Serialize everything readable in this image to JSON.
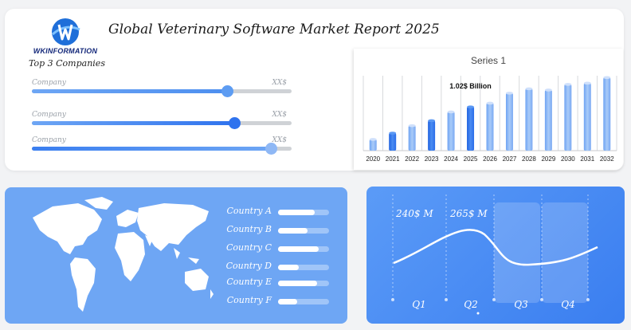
{
  "header": {
    "logo_text": "WKINFORMATION",
    "title": "Global Veterinary Software Market Report 2025"
  },
  "companies": {
    "section_title": "Top 3 Companies",
    "items": [
      {
        "label": "Company",
        "value": "XX$",
        "fraction": 0.75
      },
      {
        "label": "Company",
        "value": "XX$",
        "fraction": 0.78
      },
      {
        "label": "Company",
        "value": "XX$",
        "fraction": 0.92
      }
    ]
  },
  "chart_data": {
    "type": "bar",
    "title": "Series 1",
    "categories": [
      "2020",
      "2021",
      "2022",
      "2023",
      "2024",
      "2025",
      "2026",
      "2027",
      "2028",
      "2029",
      "2030",
      "2031",
      "2032"
    ],
    "series": [
      {
        "values": [
          0.18,
          0.28,
          0.4,
          0.48,
          0.62,
          0.7,
          0.76,
          0.92,
          0.99,
          0.97,
          1.06,
          1.08,
          1.17
        ]
      }
    ],
    "annotation": "1.02$ Billion",
    "ylim": [
      0,
      1.25
    ],
    "highlight_color": "#2f73ee",
    "bar_color": "#8fb8f5"
  },
  "countries": {
    "items": [
      {
        "label": "Country A",
        "fraction": 0.72
      },
      {
        "label": "Country B",
        "fraction": 0.58
      },
      {
        "label": "Country C",
        "fraction": 0.8
      },
      {
        "label": "Country D",
        "fraction": 0.4
      },
      {
        "label": "Country E",
        "fraction": 0.77
      },
      {
        "label": "Country F",
        "fraction": 0.38
      }
    ]
  },
  "quarters": {
    "labels": [
      "Q1",
      "Q2",
      "Q3",
      "Q4"
    ],
    "value_labels": [
      "240$ M",
      "265$ M"
    ]
  }
}
